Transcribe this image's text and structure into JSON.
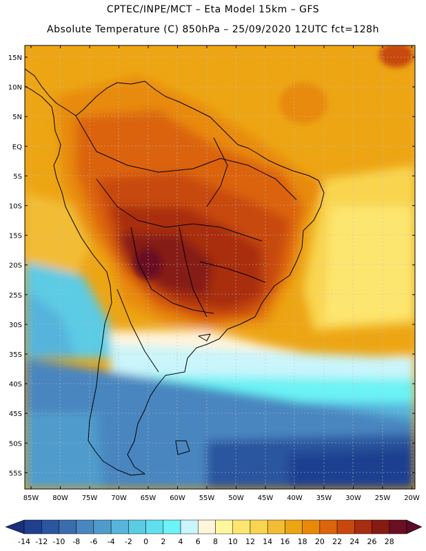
{
  "header": {
    "line1": "CPTEC/INPE/MCT –  Eta Model 15km – GFS",
    "line2": "Absolute Temperature (C) 850hPa – 25/09/2020 12UTC fct=128h"
  },
  "map": {
    "lat_labels": [
      "15N",
      "10N",
      "5N",
      "EQ",
      "5S",
      "10S",
      "15S",
      "20S",
      "25S",
      "30S",
      "35S",
      "40S",
      "45S",
      "50S",
      "55S"
    ],
    "lon_labels": [
      "85W",
      "80W",
      "75W",
      "70W",
      "65W",
      "60W",
      "55W",
      "50W",
      "45W",
      "40W",
      "35W",
      "30W",
      "25W",
      "20W"
    ]
  },
  "colorbar": {
    "labels": [
      "-14",
      "-12",
      "-10",
      "-8",
      "-6",
      "-4",
      "-2",
      "0",
      "2",
      "4",
      "6",
      "8",
      "10",
      "12",
      "14",
      "16",
      "18",
      "20",
      "22",
      "24",
      "26",
      "28"
    ],
    "colors": [
      "#1f3f8f",
      "#2b559f",
      "#3a6cae",
      "#4a86c0",
      "#4f9ccc",
      "#57b4dc",
      "#5ccbe4",
      "#5fe0ee",
      "#6cf3f6",
      "#c9f5fb",
      "#fff4dc",
      "#fff79e",
      "#fde66f",
      "#f9d54f",
      "#f2bd35",
      "#eda514",
      "#e88a08",
      "#dc640a",
      "#c8480d",
      "#a92d10",
      "#861b12",
      "#6a0f22"
    ],
    "min_color": "#1a2f7a",
    "max_color": "#5a0a2a"
  }
}
